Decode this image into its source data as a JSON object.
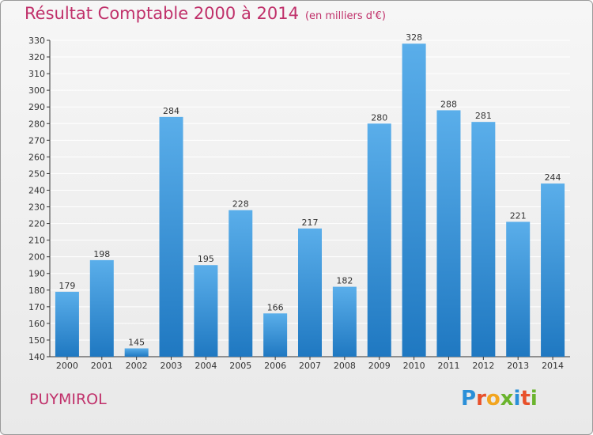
{
  "header": {
    "title": "Résultat Comptable 2000 à 2014",
    "subtitle": "(en milliers d'€)"
  },
  "footer": {
    "commune": "PUYMIROL",
    "logo_letters": [
      "P",
      "r",
      "o",
      "x",
      "i",
      "t",
      "i"
    ],
    "logo_colors": [
      "#2a8fd8",
      "#e8502a",
      "#f2a51f",
      "#6ab42d",
      "#2a8fd8",
      "#e8502a",
      "#6ab42d"
    ]
  },
  "colors": {
    "bar_top": "#5aaeea",
    "bar_bottom": "#1f78c1",
    "title": "#c0306a",
    "grid": "#ffffff"
  },
  "chart_data": {
    "type": "bar",
    "title": "Résultat Comptable 2000 à 2014",
    "subtitle": "(en milliers d'€)",
    "categories": [
      "2000",
      "2001",
      "2002",
      "2003",
      "2004",
      "2005",
      "2006",
      "2007",
      "2008",
      "2009",
      "2010",
      "2011",
      "2012",
      "2013",
      "2014"
    ],
    "values": [
      179,
      198,
      145,
      284,
      195,
      228,
      166,
      217,
      182,
      280,
      328,
      288,
      281,
      221,
      244
    ],
    "ylim": [
      140,
      330
    ],
    "yticks": [
      140,
      150,
      160,
      170,
      180,
      190,
      200,
      210,
      220,
      230,
      240,
      250,
      260,
      270,
      280,
      290,
      300,
      310,
      320,
      330
    ],
    "grid": true,
    "xlabel": "",
    "ylabel": ""
  }
}
